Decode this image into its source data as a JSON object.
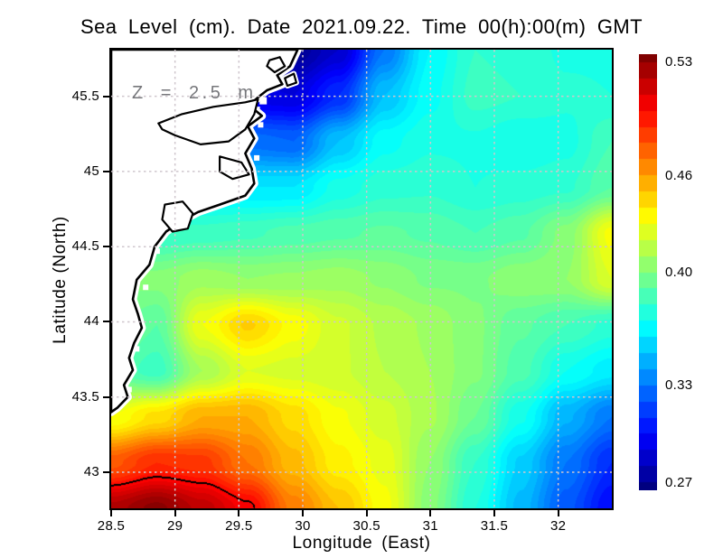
{
  "title": "Sea Level (cm). Date 2021.09.22. Time 00(h):00(m) GMT",
  "annotation": "Z = 2.5 m",
  "axes": {
    "x_label": "Longitude (East)",
    "y_label": "Latitude (North)",
    "x_range": [
      28.5,
      32.42
    ],
    "y_range": [
      42.76,
      45.81
    ],
    "x_ticks": [
      28.5,
      29,
      29.5,
      30,
      30.5,
      31,
      31.5,
      32
    ],
    "x_tick_labels": [
      "28.5",
      "29",
      "29.5",
      "30",
      "30.5",
      "31",
      "31.5",
      "32"
    ],
    "y_ticks": [
      45.5,
      45,
      44.5,
      44,
      43.5,
      43
    ],
    "y_tick_labels": [
      "45.5",
      "45",
      "44.5",
      "44",
      "43.5",
      "43"
    ],
    "grid": true
  },
  "colorbar": {
    "min": 0.265,
    "max": 0.535,
    "band_step": 0.01,
    "tick_values": [
      0.53,
      0.46,
      0.4,
      0.33,
      0.27
    ],
    "tick_labels": [
      "0.53",
      "0.46",
      "0.40",
      "0.33",
      "0.27"
    ]
  },
  "chart_data": {
    "type": "heatmap",
    "colormap": "jet",
    "title": "Sea Level (cm). Date 2021.09.22. Time 00(h):00(m) GMT",
    "xlabel": "Longitude (East)",
    "ylabel": "Latitude (North)",
    "x": [
      28.5,
      28.856,
      29.213,
      29.569,
      29.925,
      30.281,
      30.638,
      30.994,
      31.35,
      31.706,
      32.063,
      32.42
    ],
    "y": [
      45.81,
      45.505,
      45.2,
      44.895,
      44.59,
      44.285,
      43.98,
      43.675,
      43.37,
      43.065,
      42.76
    ],
    "values": [
      [
        0.31,
        0.305,
        0.3,
        0.29,
        0.27,
        0.285,
        0.33,
        0.365,
        0.38,
        0.378,
        0.374,
        0.374
      ],
      [
        0.315,
        0.31,
        0.305,
        0.292,
        0.29,
        0.31,
        0.35,
        0.368,
        0.382,
        0.38,
        0.376,
        0.375
      ],
      [
        0.33,
        0.33,
        0.33,
        0.328,
        0.325,
        0.35,
        0.368,
        0.374,
        0.374,
        0.37,
        0.373,
        0.385
      ],
      [
        0.36,
        0.36,
        0.36,
        0.36,
        0.36,
        0.372,
        0.378,
        0.379,
        0.375,
        0.377,
        0.379,
        0.39
      ],
      [
        0.38,
        0.38,
        0.382,
        0.384,
        0.387,
        0.389,
        0.391,
        0.389,
        0.385,
        0.389,
        0.402,
        0.432
      ],
      [
        0.4,
        0.402,
        0.408,
        0.405,
        0.406,
        0.408,
        0.404,
        0.399,
        0.399,
        0.404,
        0.405,
        0.425
      ],
      [
        0.4,
        0.39,
        0.43,
        0.446,
        0.433,
        0.421,
        0.414,
        0.409,
        0.401,
        0.391,
        0.385,
        0.378
      ],
      [
        0.39,
        0.382,
        0.41,
        0.425,
        0.423,
        0.421,
        0.415,
        0.41,
        0.401,
        0.387,
        0.37,
        0.362
      ],
      [
        0.43,
        0.442,
        0.455,
        0.455,
        0.443,
        0.431,
        0.422,
        0.411,
        0.395,
        0.371,
        0.346,
        0.33
      ],
      [
        0.478,
        0.49,
        0.487,
        0.47,
        0.452,
        0.437,
        0.428,
        0.405,
        0.38,
        0.354,
        0.33,
        0.31
      ],
      [
        0.522,
        0.532,
        0.518,
        0.502,
        0.468,
        0.45,
        0.432,
        0.402,
        0.375,
        0.348,
        0.322,
        0.3
      ]
    ],
    "contour_level": 0.5,
    "field_band_step": 0.005
  },
  "map": {
    "land_color": "#ffffff",
    "coast_color": "#000000",
    "outer_coast": [
      [
        28.5,
        45.81
      ],
      [
        29.96,
        45.81
      ],
      [
        29.9,
        45.7
      ],
      [
        29.8,
        45.64
      ],
      [
        29.84,
        45.58
      ],
      [
        29.72,
        45.54
      ],
      [
        29.66,
        45.5
      ],
      [
        29.58,
        45.44
      ],
      [
        29.68,
        45.37
      ],
      [
        29.57,
        45.3
      ],
      [
        29.62,
        45.22
      ],
      [
        29.55,
        45.12
      ],
      [
        29.6,
        45.02
      ],
      [
        29.62,
        44.92
      ],
      [
        29.55,
        44.84
      ],
      [
        29.35,
        44.78
      ],
      [
        29.18,
        44.73
      ],
      [
        29.05,
        44.67
      ],
      [
        28.93,
        44.6
      ],
      [
        28.84,
        44.5
      ],
      [
        28.8,
        44.38
      ],
      [
        28.7,
        44.28
      ],
      [
        28.67,
        44.15
      ],
      [
        28.71,
        44.05
      ],
      [
        28.74,
        43.96
      ],
      [
        28.68,
        43.86
      ],
      [
        28.64,
        43.76
      ],
      [
        28.67,
        43.68
      ],
      [
        28.6,
        43.58
      ],
      [
        28.63,
        43.5
      ],
      [
        28.55,
        43.43
      ],
      [
        28.5,
        43.4
      ]
    ],
    "lagoons": [
      [
        [
          28.87,
          45.32
        ],
        [
          29.05,
          45.38
        ],
        [
          29.3,
          45.43
        ],
        [
          29.55,
          45.46
        ],
        [
          29.65,
          45.48
        ],
        [
          29.62,
          45.38
        ],
        [
          29.55,
          45.28
        ],
        [
          29.42,
          45.2
        ],
        [
          29.2,
          45.18
        ],
        [
          29.0,
          45.24
        ],
        [
          28.9,
          45.28
        ]
      ],
      [
        [
          29.35,
          45.1
        ],
        [
          29.52,
          45.06
        ],
        [
          29.58,
          44.98
        ],
        [
          29.45,
          44.95
        ],
        [
          29.35,
          45.0
        ]
      ],
      [
        [
          28.92,
          44.78
        ],
        [
          29.06,
          44.8
        ],
        [
          29.14,
          44.72
        ],
        [
          29.1,
          44.62
        ],
        [
          28.98,
          44.6
        ],
        [
          28.9,
          44.68
        ]
      ]
    ],
    "islands": [
      [
        [
          29.74,
          45.74
        ],
        [
          29.82,
          45.76
        ],
        [
          29.86,
          45.7
        ],
        [
          29.78,
          45.66
        ],
        [
          29.72,
          45.7
        ]
      ],
      [
        [
          29.86,
          45.62
        ],
        [
          29.93,
          45.65
        ],
        [
          29.95,
          45.59
        ],
        [
          29.88,
          45.57
        ]
      ]
    ],
    "coast_gaps": [
      [
        29.73,
        45.57,
        9
      ],
      [
        29.8,
        45.62,
        8
      ],
      [
        29.69,
        45.47,
        8
      ],
      [
        29.64,
        45.41,
        7
      ],
      [
        29.67,
        45.31,
        6
      ],
      [
        29.6,
        45.21,
        7
      ],
      [
        29.64,
        45.09,
        6
      ],
      [
        29.56,
        44.93,
        7
      ],
      [
        29.51,
        44.83,
        6
      ],
      [
        29.25,
        44.75,
        6
      ],
      [
        29.0,
        44.64,
        6
      ],
      [
        28.86,
        44.47,
        6
      ],
      [
        28.77,
        44.23,
        6
      ],
      [
        28.73,
        44.0,
        6
      ],
      [
        28.7,
        43.82,
        6
      ],
      [
        28.64,
        43.55,
        6
      ]
    ]
  },
  "colors": {
    "background": "#ffffff",
    "frame": "#000000",
    "grid_line": "#cfc6cd",
    "annotation_text": "#76777b",
    "contour_line": "#000000"
  }
}
